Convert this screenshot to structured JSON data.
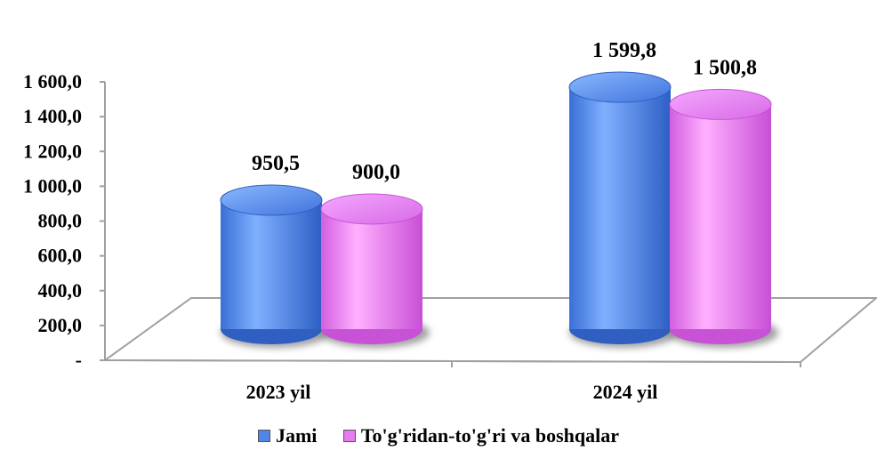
{
  "chart_data": {
    "type": "bar",
    "categories": [
      "2023 yil",
      "2024 yil"
    ],
    "series": [
      {
        "name": "Jami",
        "values": [
          950.5,
          1599.8
        ],
        "labels": [
          "950,5",
          "1 599,8"
        ]
      },
      {
        "name": "To'g'ridan-to'g'ri va boshqalar",
        "values": [
          900.0,
          1500.8
        ],
        "labels": [
          "900,0",
          "1 500,8"
        ]
      }
    ],
    "ylim": [
      0,
      1600
    ],
    "ytick_values": [
      0,
      200,
      400,
      600,
      800,
      1000,
      1200,
      1400,
      1600
    ],
    "ytick_labels": [
      "-",
      "200,0",
      "400,0",
      "600,0",
      "800,0",
      "1 000,0",
      "1 200,0",
      "1 400,0",
      "1 600,0"
    ],
    "colors": [
      "#4F86E8",
      "#E67BF0"
    ],
    "legend_position": "bottom",
    "grid": false,
    "style": "3d-cylinder"
  }
}
